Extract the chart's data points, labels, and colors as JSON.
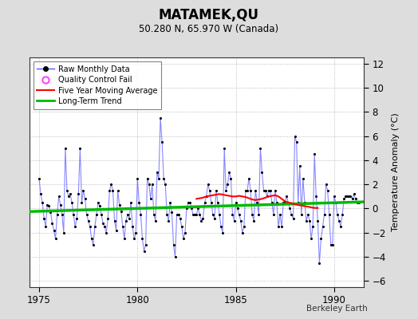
{
  "title": "MATAMEK,QU",
  "subtitle": "50.280 N, 65.970 W (Canada)",
  "ylabel": "Temperature Anomaly (°C)",
  "credit": "Berkeley Earth",
  "xlim": [
    1974.5,
    1991.5
  ],
  "ylim": [
    -6.5,
    12.5
  ],
  "yticks": [
    -6,
    -4,
    -2,
    0,
    2,
    4,
    6,
    8,
    10,
    12
  ],
  "xticks": [
    1975,
    1980,
    1985,
    1990
  ],
  "bg_color": "#dddddd",
  "plot_bg_color": "#ffffff",
  "raw_color": "#5555ff",
  "raw_alpha": 0.7,
  "dot_color": "#000000",
  "ma_color": "#ff0000",
  "trend_color": "#00bb00",
  "qc_color": "#ff44ff",
  "raw_x": [
    1975.0,
    1975.083,
    1975.167,
    1975.25,
    1975.333,
    1975.417,
    1975.5,
    1975.583,
    1975.667,
    1975.75,
    1975.833,
    1975.917,
    1976.0,
    1976.083,
    1976.167,
    1976.25,
    1976.333,
    1976.417,
    1976.5,
    1976.583,
    1976.667,
    1976.75,
    1976.833,
    1976.917,
    1977.0,
    1977.083,
    1977.167,
    1977.25,
    1977.333,
    1977.417,
    1977.5,
    1977.583,
    1977.667,
    1977.75,
    1977.833,
    1977.917,
    1978.0,
    1978.083,
    1978.167,
    1978.25,
    1978.333,
    1978.417,
    1978.5,
    1978.583,
    1978.667,
    1978.75,
    1978.833,
    1978.917,
    1979.0,
    1979.083,
    1979.167,
    1979.25,
    1979.333,
    1979.417,
    1979.5,
    1979.583,
    1979.667,
    1979.75,
    1979.833,
    1979.917,
    1980.0,
    1980.083,
    1980.167,
    1980.25,
    1980.333,
    1980.417,
    1980.5,
    1980.583,
    1980.667,
    1980.75,
    1980.833,
    1980.917,
    1981.0,
    1981.083,
    1981.167,
    1981.25,
    1981.333,
    1981.417,
    1981.5,
    1981.583,
    1981.667,
    1981.75,
    1981.833,
    1981.917,
    1982.0,
    1982.083,
    1982.167,
    1982.25,
    1982.333,
    1982.417,
    1982.5,
    1982.583,
    1982.667,
    1982.75,
    1982.833,
    1982.917,
    1983.0,
    1983.083,
    1983.167,
    1983.25,
    1983.333,
    1983.417,
    1983.5,
    1983.583,
    1983.667,
    1983.75,
    1983.833,
    1983.917,
    1984.0,
    1984.083,
    1984.167,
    1984.25,
    1984.333,
    1984.417,
    1984.5,
    1984.583,
    1984.667,
    1984.75,
    1984.833,
    1984.917,
    1985.0,
    1985.083,
    1985.167,
    1985.25,
    1985.333,
    1985.417,
    1985.5,
    1985.583,
    1985.667,
    1985.75,
    1985.833,
    1985.917,
    1986.0,
    1986.083,
    1986.167,
    1986.25,
    1986.333,
    1986.417,
    1986.5,
    1986.583,
    1986.667,
    1986.75,
    1986.833,
    1986.917,
    1987.0,
    1987.083,
    1987.167,
    1987.25,
    1987.333,
    1987.417,
    1987.5,
    1987.583,
    1987.667,
    1987.75,
    1987.833,
    1987.917,
    1988.0,
    1988.083,
    1988.167,
    1988.25,
    1988.333,
    1988.417,
    1988.5,
    1988.583,
    1988.667,
    1988.75,
    1988.833,
    1988.917,
    1989.0,
    1989.083,
    1989.167,
    1989.25,
    1989.333,
    1989.417,
    1989.5,
    1989.583,
    1989.667,
    1989.75,
    1989.833,
    1989.917,
    1990.0,
    1990.083,
    1990.167,
    1990.25,
    1990.333,
    1990.417,
    1990.5,
    1990.583,
    1990.667,
    1990.75,
    1990.833,
    1990.917,
    1991.0,
    1991.083,
    1991.167,
    1991.25
  ],
  "raw_y": [
    2.5,
    1.2,
    0.5,
    -0.8,
    -1.5,
    0.3,
    0.2,
    -0.3,
    -1.2,
    -1.8,
    -2.5,
    -0.5,
    1.0,
    0.3,
    -0.5,
    -2.0,
    5.0,
    1.5,
    1.0,
    1.2,
    0.5,
    -0.5,
    -1.5,
    -0.8,
    1.2,
    5.0,
    0.5,
    1.5,
    0.8,
    -0.5,
    -1.0,
    -1.5,
    -2.5,
    -3.0,
    -1.5,
    -0.5,
    0.5,
    0.2,
    -0.5,
    -1.2,
    -1.5,
    -2.0,
    -0.8,
    1.5,
    2.0,
    1.5,
    -1.0,
    -1.8,
    1.5,
    0.3,
    -0.2,
    -1.5,
    -2.5,
    -1.0,
    -0.5,
    -0.8,
    0.5,
    -1.5,
    -2.5,
    -2.0,
    2.5,
    0.5,
    -0.5,
    -2.5,
    -3.5,
    -3.0,
    2.5,
    2.0,
    0.8,
    2.0,
    -0.5,
    -1.0,
    3.0,
    2.5,
    7.5,
    5.5,
    2.5,
    2.0,
    -0.5,
    -1.0,
    0.5,
    -0.3,
    -3.0,
    -4.0,
    -0.5,
    -0.5,
    -0.8,
    -1.5,
    -2.5,
    -2.0,
    0.0,
    0.5,
    0.5,
    0.0,
    -0.5,
    -0.5,
    -0.5,
    0.0,
    -0.5,
    -1.0,
    -0.8,
    0.5,
    1.0,
    2.0,
    1.5,
    0.5,
    -0.5,
    -0.8,
    1.5,
    0.5,
    -0.5,
    -1.5,
    -2.0,
    5.0,
    1.5,
    2.0,
    3.0,
    2.5,
    -0.5,
    -1.0,
    0.5,
    0.0,
    -0.5,
    -1.0,
    -2.0,
    -1.5,
    1.5,
    1.5,
    2.5,
    1.5,
    -0.5,
    -1.0,
    1.5,
    0.5,
    -0.5,
    5.0,
    3.0,
    1.5,
    1.5,
    1.0,
    1.5,
    1.5,
    0.5,
    -0.5,
    1.5,
    0.5,
    -1.5,
    -0.5,
    -1.5,
    0.5,
    0.5,
    1.0,
    0.5,
    0.0,
    -0.5,
    -0.8,
    6.0,
    5.5,
    0.5,
    3.5,
    -0.5,
    2.5,
    0.5,
    -1.0,
    -0.5,
    -1.0,
    -2.5,
    -1.5,
    4.5,
    1.0,
    -1.0,
    -4.5,
    -2.5,
    -1.5,
    -0.5,
    2.0,
    1.5,
    -0.5,
    -3.0,
    -3.0,
    1.0,
    0.5,
    -0.5,
    -1.0,
    -1.5,
    -0.5,
    0.8,
    1.0,
    1.0,
    1.0,
    1.0,
    0.8,
    1.2,
    0.8,
    0.5,
    0.5
  ],
  "trend_x": [
    1974.5,
    1991.5
  ],
  "trend_y": [
    -0.25,
    0.55
  ],
  "ma_x": [
    1983.0,
    1983.167,
    1983.333,
    1983.5,
    1983.667,
    1983.833,
    1984.0,
    1984.167,
    1984.333,
    1984.5,
    1984.667,
    1984.833,
    1985.0,
    1985.167,
    1985.333,
    1985.5,
    1985.667,
    1985.833,
    1986.0,
    1986.167,
    1986.333,
    1986.5,
    1986.667,
    1986.833,
    1987.0,
    1987.167,
    1987.333,
    1987.5,
    1987.667,
    1987.833,
    1988.0,
    1988.167,
    1988.333,
    1988.5,
    1988.667,
    1988.833,
    1989.0,
    1989.167
  ],
  "ma_y": [
    0.8,
    0.85,
    0.9,
    1.0,
    1.05,
    1.1,
    1.15,
    1.2,
    1.15,
    1.1,
    1.05,
    1.0,
    1.0,
    1.05,
    1.0,
    0.95,
    0.85,
    0.75,
    0.7,
    0.75,
    0.8,
    0.9,
    1.0,
    1.05,
    1.1,
    1.0,
    0.8,
    0.6,
    0.5,
    0.45,
    0.35,
    0.3,
    0.25,
    0.2,
    0.15,
    0.1,
    0.05,
    0.05
  ]
}
